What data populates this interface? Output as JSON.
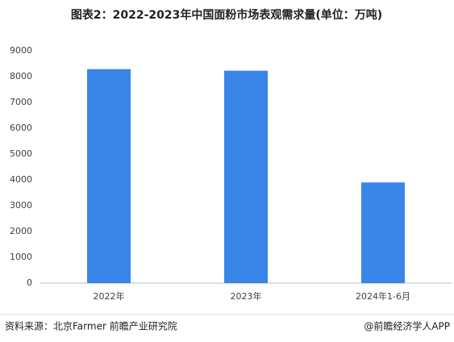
{
  "chart_data": {
    "type": "bar",
    "title": "图表2：2022-2023年中国面粉市场表观需求量(单位：万吨)",
    "categories": [
      "2022年",
      "2023年",
      "2024年1-6月"
    ],
    "values": [
      8290,
      8230,
      3900
    ],
    "color": "#3a86e8",
    "ylim": [
      0,
      9000
    ],
    "yticks": [
      0,
      1000,
      2000,
      3000,
      4000,
      5000,
      6000,
      7000,
      8000,
      9000
    ],
    "grid": false,
    "source": "资料来源：北京Farmer 前瞻产业研究院",
    "credit": "@前瞻经济学人APP"
  }
}
